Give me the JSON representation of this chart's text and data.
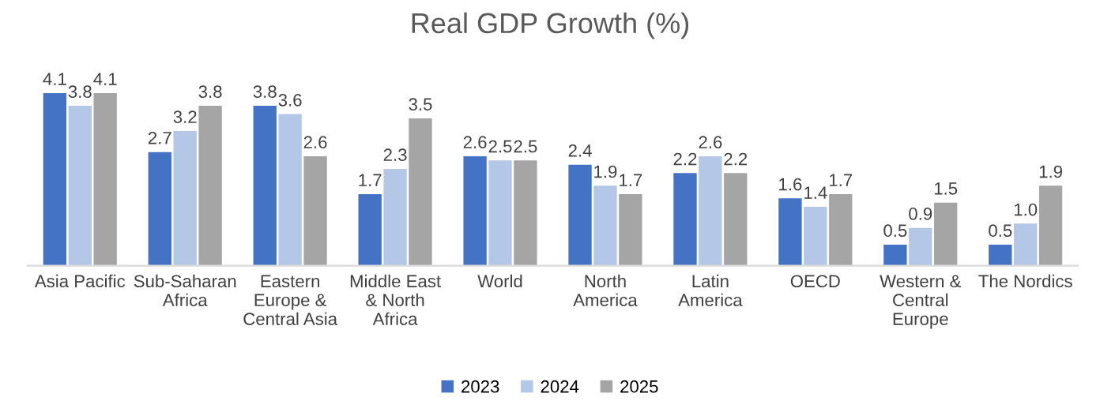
{
  "chart_data": {
    "type": "bar",
    "title": "Real GDP Growth (%)",
    "categories": [
      "Asia Pacific",
      "Sub-Saharan\nAfrica",
      "Eastern\nEurope &\nCentral Asia",
      "Middle East\n& North\nAfrica",
      "World",
      "North\nAmerica",
      "Latin\nAmerica",
      "OECD",
      "Western &\nCentral\nEurope",
      "The Nordics"
    ],
    "series": [
      {
        "name": "2023",
        "color": "#4472c4",
        "values": [
          4.1,
          2.7,
          3.8,
          1.7,
          2.6,
          2.4,
          2.2,
          1.6,
          0.5,
          0.5
        ],
        "value_labels": [
          "4.1",
          "2.7",
          "3.8",
          "1.7",
          "2.6",
          "2.4",
          "2.2",
          "1.6",
          "0.5",
          "0.5"
        ]
      },
      {
        "name": "2024",
        "color": "#b4c7e7",
        "values": [
          3.8,
          3.2,
          3.6,
          2.3,
          2.5,
          1.9,
          2.6,
          1.4,
          0.9,
          1.0
        ],
        "value_labels": [
          "3.8",
          "3.2",
          "3.6",
          "2.3",
          "2.5",
          "1.9",
          "2.6",
          "1.4",
          "0.9",
          "1.0"
        ]
      },
      {
        "name": "2025",
        "color": "#a5a5a5",
        "values": [
          4.1,
          3.8,
          2.6,
          3.5,
          2.5,
          1.7,
          2.2,
          1.7,
          1.5,
          1.9
        ],
        "value_labels": [
          "4.1",
          "3.8",
          "2.6",
          "3.5",
          "2.5",
          "1.7",
          "2.2",
          "1.7",
          "1.5",
          "1.9"
        ]
      }
    ],
    "legend": "bottom",
    "grid": false
  }
}
